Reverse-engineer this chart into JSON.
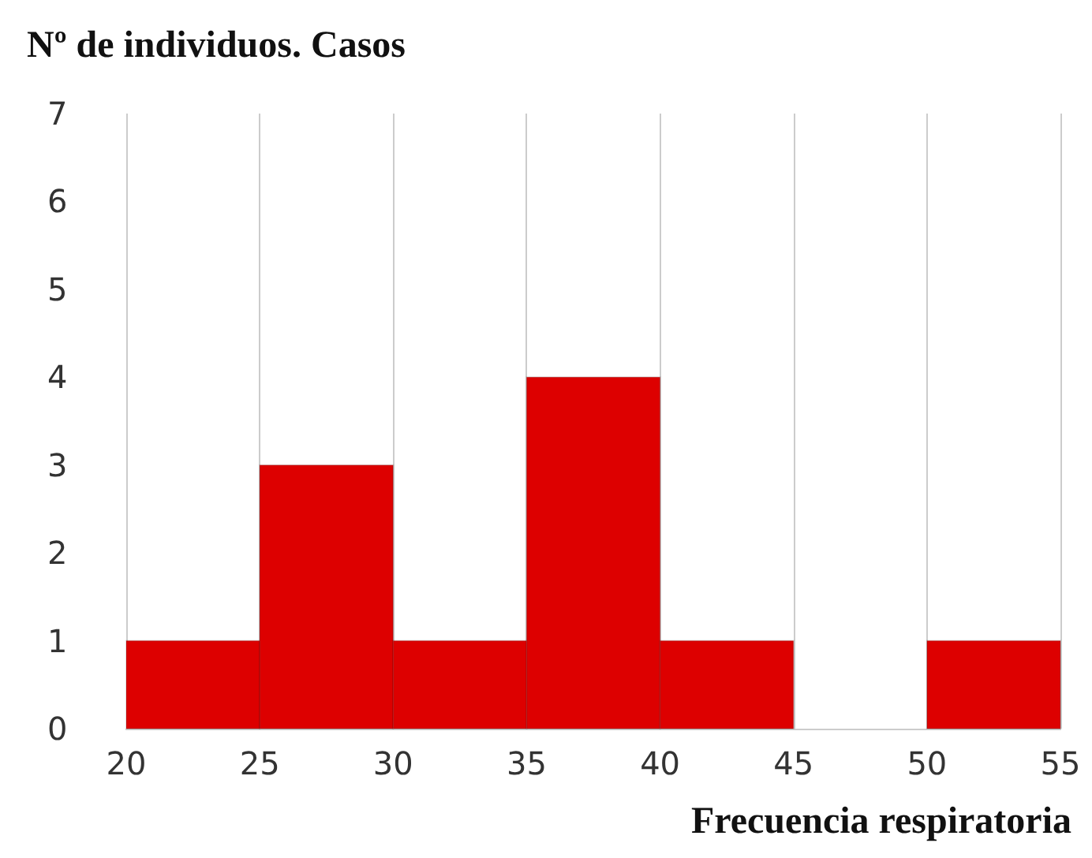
{
  "chart_data": {
    "type": "histogram",
    "xlabel": "Frecuencia respiratoria",
    "ylabel": "Nº de individuos. Casos",
    "bins": [
      20,
      25,
      30,
      35,
      40,
      45,
      50,
      55
    ],
    "values": [
      1,
      3,
      1,
      4,
      1,
      0,
      1
    ],
    "color": "#dd0000",
    "xlim": [
      20,
      55
    ],
    "xticks": [
      20,
      25,
      30,
      35,
      40,
      45,
      50,
      55
    ],
    "ylim": [
      0,
      7
    ],
    "yticks": [
      0,
      1,
      2,
      3,
      4,
      5,
      6,
      7
    ],
    "grid": "x"
  }
}
